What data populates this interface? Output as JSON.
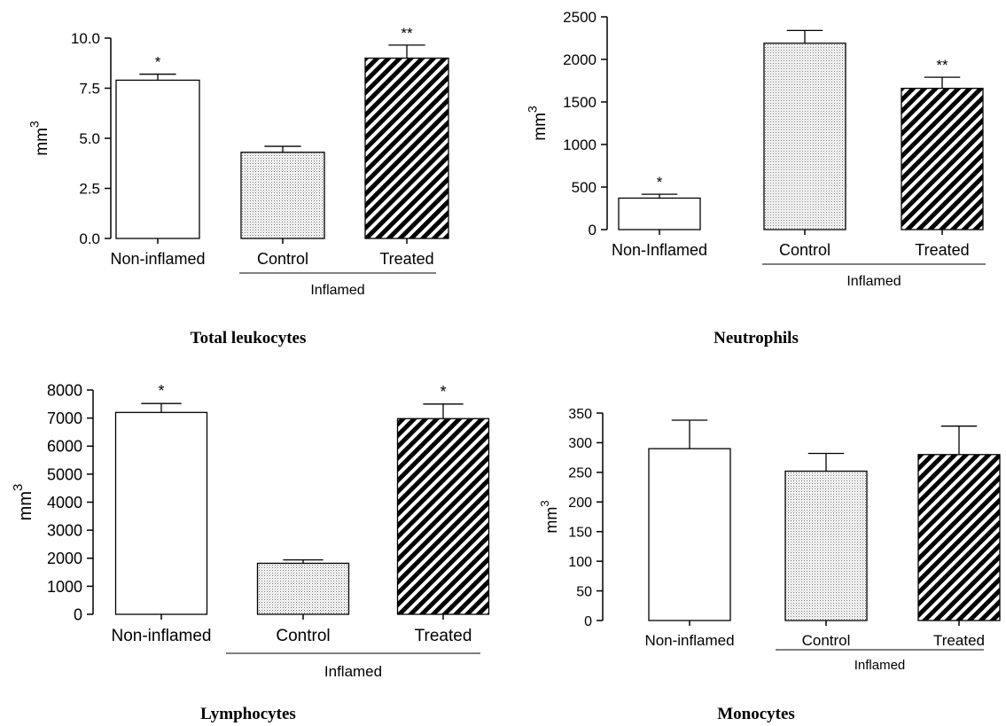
{
  "chart_data": [
    {
      "type": "bar",
      "caption": "Total leukocytes",
      "ylabel": "mm",
      "ylabel_superscript": "3",
      "ylim": [
        0,
        10
      ],
      "yticks": [
        "0.0",
        "2.5",
        "5.0",
        "7.5",
        "10.0"
      ],
      "ytick_values": [
        0,
        2.5,
        5.0,
        7.5,
        10.0
      ],
      "categories": [
        "Non-inflamed",
        "Control",
        "Treated"
      ],
      "values": [
        7.9,
        4.3,
        9.0
      ],
      "errors": [
        0.3,
        0.3,
        0.65
      ],
      "annotations": [
        "*",
        "",
        "**"
      ],
      "group_label": "Inflamed",
      "patterns": [
        "white",
        "dots",
        "stripes"
      ]
    },
    {
      "type": "bar",
      "caption": "Neutrophils",
      "ylabel": "mm",
      "ylabel_superscript": "3",
      "ylim": [
        0,
        2500
      ],
      "yticks": [
        "0",
        "500",
        "1000",
        "1500",
        "2000",
        "2500"
      ],
      "ytick_values": [
        0,
        500,
        1000,
        1500,
        2000,
        2500
      ],
      "categories": [
        "Non-Inflamed",
        "Control",
        "Treated"
      ],
      "values": [
        370,
        2190,
        1660
      ],
      "errors": [
        45,
        150,
        130
      ],
      "annotations": [
        "*",
        "",
        "**"
      ],
      "group_label": "Inflamed",
      "patterns": [
        "white",
        "dots",
        "stripes"
      ]
    },
    {
      "type": "bar",
      "caption": "Lymphocytes",
      "ylabel": "mm",
      "ylabel_superscript": "3",
      "ylim": [
        0,
        8000
      ],
      "yticks": [
        "0",
        "1000",
        "2000",
        "3000",
        "4000",
        "5000",
        "6000",
        "7000",
        "8000"
      ],
      "ytick_values": [
        0,
        1000,
        2000,
        3000,
        4000,
        5000,
        6000,
        7000,
        8000
      ],
      "categories": [
        "Non-inflamed",
        "Control",
        "Treated"
      ],
      "values": [
        7200,
        1820,
        6980
      ],
      "errors": [
        320,
        120,
        520
      ],
      "annotations": [
        "*",
        "",
        "*"
      ],
      "group_label": "Inflamed",
      "patterns": [
        "white",
        "dots",
        "stripes"
      ]
    },
    {
      "type": "bar",
      "caption": "Monocytes",
      "ylabel": "mm",
      "ylabel_superscript": "3",
      "ylim": [
        0,
        350
      ],
      "yticks": [
        "0",
        "50",
        "100",
        "150",
        "200",
        "250",
        "300",
        "350"
      ],
      "ytick_values": [
        0,
        50,
        100,
        150,
        200,
        250,
        300,
        350
      ],
      "categories": [
        "Non-inflamed",
        "Control",
        "Treated"
      ],
      "values": [
        290,
        252,
        280
      ],
      "errors": [
        48,
        30,
        48
      ],
      "annotations": [
        "",
        "",
        ""
      ],
      "group_label": "Inflamed",
      "patterns": [
        "white",
        "dots",
        "stripes"
      ]
    }
  ]
}
